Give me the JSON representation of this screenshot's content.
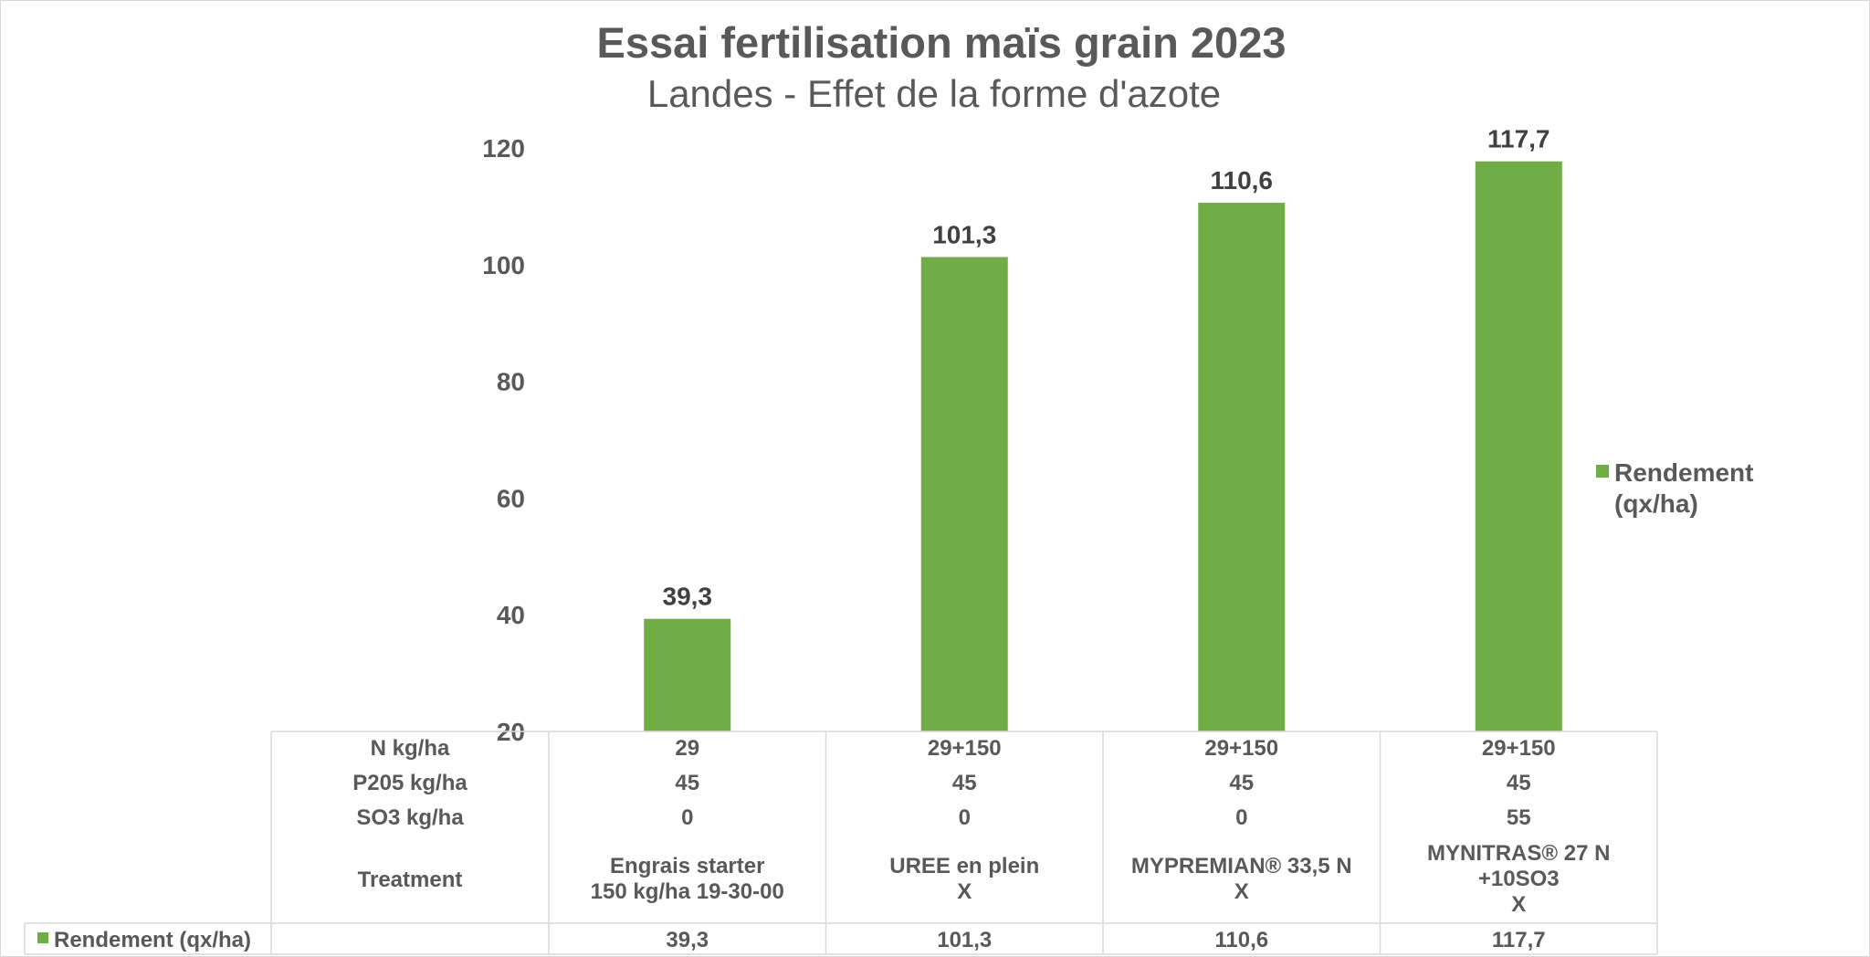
{
  "chart_data": {
    "type": "bar",
    "title": "Essai fertilisation maïs grain 2023",
    "subtitle": "Landes - Effet de la forme d'azote",
    "ylim": [
      20,
      120
    ],
    "yticks": [
      20,
      40,
      60,
      80,
      100,
      120
    ],
    "grid": false,
    "legend_position": "right",
    "bar_color": "#70ad47",
    "series": [
      {
        "name": "Rendement (qx/ha)",
        "values": [
          39.3,
          101.3,
          110.6,
          117.7
        ]
      }
    ],
    "data_labels": [
      "39,3",
      "101,3",
      "110,6",
      "117,7"
    ],
    "legend_label_lines": [
      "Rendement",
      "(qx/ha)"
    ],
    "data_table": {
      "row_headers": [
        "N kg/ha",
        "P205 kg/ha",
        "SO3 kg/ha",
        "Treatment"
      ],
      "columns": [
        {
          "n": "29",
          "p": "45",
          "so3": "0",
          "treatment": [
            "Engrais starter",
            "150 kg/ha 19-30-00"
          ]
        },
        {
          "n": "29+150",
          "p": "45",
          "so3": "0",
          "treatment": [
            "UREE en plein",
            "X"
          ]
        },
        {
          "n": "29+150",
          "p": "45",
          "so3": "0",
          "treatment": [
            "MYPREMIAN® 33,5 N",
            "X"
          ]
        },
        {
          "n": "29+150",
          "p": "45",
          "so3": "55",
          "treatment": [
            "MYNITRAS® 27 N",
            "+10SO3",
            "X"
          ]
        }
      ],
      "series_row_label": "Rendement (qx/ha)",
      "series_row_values": [
        "39,3",
        "101,3",
        "110,6",
        "117,7"
      ]
    }
  }
}
